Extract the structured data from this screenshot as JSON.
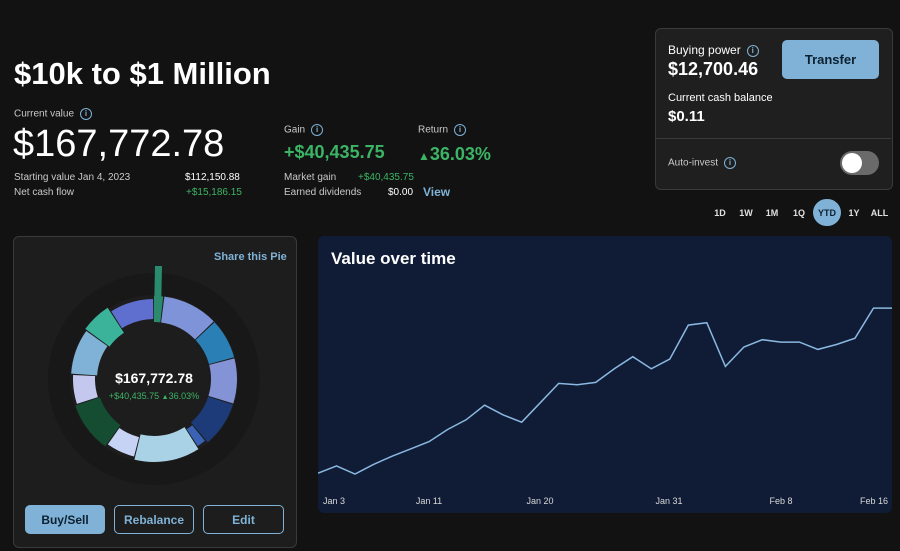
{
  "page_title": "$10k to $1 Million",
  "current_value": {
    "label": "Current value",
    "value": "$167,772.78"
  },
  "starting_value": {
    "label": "Starting value Jan 4, 2023",
    "value": "$112,150.88"
  },
  "net_cash_flow": {
    "label": "Net cash flow",
    "value": "+$15,186.15"
  },
  "gain": {
    "label": "Gain",
    "value": "+$40,435.75"
  },
  "return": {
    "label": "Return",
    "value": "36.03%"
  },
  "market_gain": {
    "label": "Market gain",
    "value": "+$40,435.75"
  },
  "earned_dividends": {
    "label": "Earned dividends",
    "value": "$0.00",
    "link": "View"
  },
  "account": {
    "buying_power_label": "Buying power",
    "buying_power": "$12,700.46",
    "transfer_label": "Transfer",
    "cash_label": "Current cash balance",
    "cash": "$0.11",
    "auto_invest_label": "Auto-invest"
  },
  "time_ranges": [
    "1D",
    "1W",
    "1M",
    "1Q",
    "YTD",
    "1Y",
    "ALL"
  ],
  "active_range": "YTD",
  "pie": {
    "share_label": "Share this Pie",
    "center_value": "$167,772.78",
    "center_gain": "+$40,435.75",
    "center_return": "36.03%",
    "slices": [
      {
        "color": "#2a8a6e",
        "weight": 2
      },
      {
        "color": "#7f94d8",
        "weight": 11
      },
      {
        "color": "#2a7fb5",
        "weight": 8
      },
      {
        "color": "#8393d6",
        "weight": 9
      },
      {
        "color": "#1c3b78",
        "weight": 9
      },
      {
        "color": "#3b63b5",
        "weight": 2
      },
      {
        "color": "#aad2e6",
        "weight": 13
      },
      {
        "color": "#c7d3f5",
        "weight": 6
      },
      {
        "color": "#154d33",
        "weight": 10
      },
      {
        "color": "#c4c8ee",
        "weight": 6
      },
      {
        "color": "#7fb2d6",
        "weight": 9
      },
      {
        "color": "#3bb39a",
        "weight": 6
      },
      {
        "color": "#5f6fd0",
        "weight": 9
      }
    ],
    "buttons": {
      "buy_sell": "Buy/Sell",
      "rebalance": "Rebalance",
      "edit": "Edit"
    }
  },
  "chart_data": {
    "type": "line",
    "title": "Value over time",
    "x_ticks": [
      "Jan 3",
      "Jan 11",
      "Jan 20",
      "Jan 31",
      "Feb 8",
      "Feb 16"
    ],
    "series": [
      {
        "values": [
          116000,
          117500,
          115800,
          117800,
          119500,
          121000,
          122500,
          125000,
          127000,
          130000,
          128000,
          126500,
          130500,
          134500,
          134200,
          134700,
          137500,
          140000,
          137500,
          139500,
          146500,
          147000,
          138000,
          142000,
          143500,
          143000,
          143000,
          141500,
          142500,
          143800,
          150000,
          150000
        ]
      }
    ],
    "ylim": [
      108000,
      156000
    ]
  }
}
